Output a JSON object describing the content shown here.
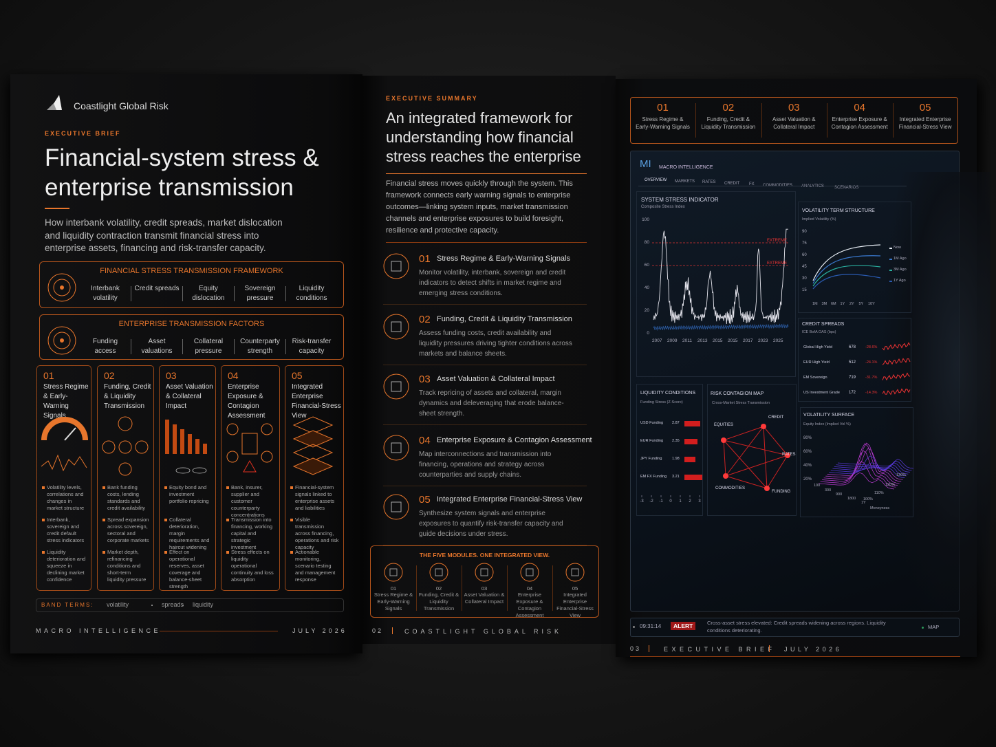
{
  "left": {
    "brand": "Coastlight Global Risk",
    "kicker": "EXECUTIVE BRIEF",
    "title": "Financial-system stress & enterprise transmission",
    "lede": "How interbank volatility, credit spreads, market dislocation and liquidity contraction transmit financial stress into enterprise assets, financing and risk-transfer capacity.",
    "framework": {
      "title": "FINANCIAL STRESS TRANSMISSION FRAMEWORK",
      "items": [
        "Interbank volatility",
        "Credit spreads",
        "Equity dislocation",
        "Sovereign pressure",
        "Liquidity conditions"
      ]
    },
    "factors": {
      "title": "ENTERPRISE TRANSMISSION FACTORS",
      "items": [
        "Funding access",
        "Asset valuations",
        "Collateral pressure",
        "Counterparty strength",
        "Risk-transfer capacity"
      ]
    },
    "cards": [
      {
        "num": "01",
        "title": "Stress Regime & Early-Warning Signals",
        "bullets": [
          "Volatility levels, correlations and changes in market structure",
          "Interbank, sovereign and credit default stress indicators",
          "Liquidity deterioration and squeeze in declining market confidence"
        ]
      },
      {
        "num": "02",
        "title": "Funding, Credit & Liquidity Transmission",
        "bullets": [
          "Bank funding costs, lending standards and credit availability",
          "Spread expansion across sovereign, sectoral and corporate markets",
          "Market depth, refinancing conditions and short-term liquidity pressure"
        ]
      },
      {
        "num": "03",
        "title": "Asset Valuation & Collateral Impact",
        "bullets": [
          "Equity bond and investment portfolio repricing",
          "Collateral deterioration, margin requirements and haircut widening",
          "Effect on operational reserves, asset coverage and balance-sheet strength"
        ]
      },
      {
        "num": "04",
        "title": "Enterprise Exposure & Contagion Assessment",
        "bullets": [
          "Bank, insurer, supplier and customer counterparty concentrations",
          "Transmission into financing, working capital and strategic investment",
          "Stress effects on liquidity operational continuity and loss absorption"
        ]
      },
      {
        "num": "05",
        "title": "Integrated Enterprise Financial-Stress View",
        "bullets": [
          "Financial-system signals linked to enterprise assets and liabilities",
          "Visible transmission across financing, operations and risk capacity",
          "Actionable monitoring, scenario testing and management response"
        ]
      }
    ],
    "band": {
      "label": "BAND TERMS:",
      "terms": [
        "volatility",
        "spreads",
        "liquidity"
      ]
    },
    "footer": {
      "left": "MACRO INTELLIGENCE",
      "right": "JULY 2026"
    }
  },
  "middle": {
    "kicker": "EXECUTIVE SUMMARY",
    "title": "An integrated framework for understanding how financial stress reaches the enterprise",
    "intro": "Financial stress moves quickly through the system. This framework connects early warning signals to enterprise outcomes—linking system inputs, market transmission channels and enterprise exposures to build foresight, resilience and protective capacity.",
    "modules": [
      {
        "num": "01",
        "title": "Stress Regime & Early-Warning Signals",
        "desc": "Monitor volatility, interbank, sovereign and credit indicators to detect shifts in market regime and emerging stress conditions."
      },
      {
        "num": "02",
        "title": "Funding, Credit & Liquidity Transmission",
        "desc": "Assess funding costs, credit availability and liquidity pressures driving tighter conditions across markets and balance sheets."
      },
      {
        "num": "03",
        "title": "Asset Valuation & Collateral Impact",
        "desc": "Track repricing of assets and collateral, margin dynamics and deleveraging that erode balance-sheet strength."
      },
      {
        "num": "04",
        "title": "Enterprise Exposure & Contagion Assessment",
        "desc": "Map interconnections and transmission into financing, operations and strategy across counterparties and supply chains."
      },
      {
        "num": "05",
        "title": "Integrated Enterprise Financial-Stress View",
        "desc": "Synthesize system signals and enterprise exposures to quantify risk-transfer capacity and guide decisions under stress."
      }
    ],
    "banner": {
      "title": "THE FIVE MODULES. ONE INTEGRATED VIEW.",
      "items": [
        {
          "num": "01",
          "label": "Stress Regime & Early-Warning Signals"
        },
        {
          "num": "02",
          "label": "Funding, Credit & Liquidity Transmission"
        },
        {
          "num": "03",
          "label": "Asset Valuation & Collateral Impact"
        },
        {
          "num": "04",
          "label": "Enterprise Exposure & Contagion Assessment"
        },
        {
          "num": "05",
          "label": "Integrated Enterprise Financial-Stress View"
        }
      ]
    },
    "footer": {
      "page": "02",
      "label": "COASTLIGHT GLOBAL RISK"
    }
  },
  "right": {
    "tabs": [
      {
        "num": "01",
        "label": "Stress Regime & Early-Warning Signals"
      },
      {
        "num": "02",
        "label": "Funding, Credit & Liquidity Transmission"
      },
      {
        "num": "03",
        "label": "Asset Valuation & Collateral Impact"
      },
      {
        "num": "04",
        "label": "Enterprise Exposure & Contagion Assessment"
      },
      {
        "num": "05",
        "label": "Integrated Enterprise Financial-Stress View"
      }
    ],
    "dashboard": {
      "logo": "MI",
      "name": "MACRO INTELLIGENCE",
      "nav": [
        "OVERVIEW",
        "MARKETS",
        "RATES",
        "CREDIT",
        "FX",
        "COMMODITIES",
        "ANALYTICS",
        "SCENARIOS"
      ],
      "stress": {
        "title": "SYSTEM STRESS INDICATOR",
        "subtitle": "Composite Stress Index",
        "yticks": [
          "100",
          "80",
          "60",
          "40",
          "20",
          "0"
        ],
        "xticks": [
          "2007",
          "2009",
          "2011",
          "2013",
          "2015",
          "2015",
          "2017",
          "2023",
          "2025"
        ],
        "thresholds": [
          "EXTREME",
          "EXTREME"
        ]
      },
      "term": {
        "title": "VOLATILITY TERM STRUCTURE",
        "subtitle": "Implied Volatility (%)",
        "yticks": [
          "90",
          "75",
          "60",
          "45",
          "30",
          "15"
        ],
        "xticks": [
          "1M",
          "3M",
          "6M",
          "1Y",
          "2Y",
          "5Y",
          "10Y"
        ],
        "legend": [
          "Now",
          "1M Ago",
          "3M Ago",
          "1Y Ago"
        ]
      },
      "credit": {
        "title": "CREDIT SPREADS",
        "subtitle": "ICE BofA OAS (bps)",
        "rows": [
          {
            "name": "Global High Yield",
            "value": "678",
            "change": "-28.6%"
          },
          {
            "name": "EUR High Yield",
            "value": "512",
            "change": "-24.1%"
          },
          {
            "name": "EM Sovereign",
            "value": "719",
            "change": "-31.7%"
          },
          {
            "name": "US Investment Grade",
            "value": "172",
            "change": "-14.3%"
          }
        ]
      },
      "liquidity": {
        "title": "LIQUIDITY CONDITIONS",
        "subtitle": "Funding Stress (Z-Score)",
        "rows": [
          {
            "name": "USD Funding",
            "value": 2.87
          },
          {
            "name": "EUR Funding",
            "value": 2.35
          },
          {
            "name": "JPY Funding",
            "value": 1.98
          },
          {
            "name": "EM FX Funding",
            "value": 3.21
          }
        ],
        "axis": [
          -3,
          -2,
          -1,
          0,
          1,
          2,
          3
        ]
      },
      "contagion": {
        "title": "RISK CONTAGION MAP",
        "subtitle": "Cross-Market Stress Transmission",
        "nodes": [
          "EQUITIES",
          "CREDIT",
          "RATES",
          "FUNDING",
          "COMMODITIES"
        ]
      },
      "surface": {
        "title": "VOLATILITY SURFACE",
        "subtitle": "Equity Index (Implied Vol %)",
        "zticks": [
          "80%",
          "60%",
          "40%",
          "20%"
        ],
        "xticks": [
          "100",
          "300",
          "900",
          "1800",
          "1Y"
        ],
        "yticks": [
          "130%",
          "120%",
          "110%",
          "100%"
        ],
        "axis": "Moneyness"
      },
      "alert": {
        "time": "09:31:14",
        "tag": "ALERT",
        "message": "Cross-asset stress elevated: Credit spreads widening across regions. Liquidity conditions deteriorating.",
        "map": "MAP"
      }
    },
    "footer": {
      "page": "03",
      "label": "EXECUTIVE BRIEF",
      "date": "JULY 2026"
    }
  }
}
